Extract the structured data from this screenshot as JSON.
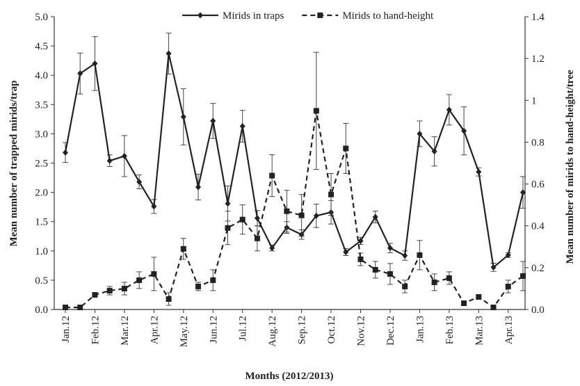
{
  "chart_data": {
    "type": "line",
    "categories": [
      "Jan.12",
      null,
      "Feb.12",
      null,
      "Mar.12",
      null,
      "Apr.12",
      null,
      "May.12",
      null,
      "Jun.12",
      null,
      "Jul.12",
      null,
      "Aug.12",
      null,
      "Sep.12",
      null,
      "Oct.12",
      null,
      "Nov.12",
      null,
      "Dec.12",
      null,
      "Jan.13",
      null,
      "Feb.13",
      null,
      "Mar.13",
      null,
      "Apr.13",
      null
    ],
    "xlabel": "Months (2012/2013)",
    "ylabel": "Mean number of trapped mirids/trap",
    "y2label": "Mean number of mirids to hand-height/tree",
    "ylim": [
      0,
      5
    ],
    "yticks": [
      {
        "value": 0,
        "label": "0.0"
      },
      {
        "value": 0.5,
        "label": "0.5"
      },
      {
        "value": 1,
        "label": "1.0"
      },
      {
        "value": 1.5,
        "label": "1.5"
      },
      {
        "value": 2,
        "label": "2.0"
      },
      {
        "value": 2.5,
        "label": "2.5"
      },
      {
        "value": 3,
        "label": "3.0"
      },
      {
        "value": 3.5,
        "label": "3.5"
      },
      {
        "value": 4,
        "label": "4.0"
      },
      {
        "value": 4.5,
        "label": "4.5"
      },
      {
        "value": 5,
        "label": "5.0"
      }
    ],
    "y2lim": [
      0,
      1.4
    ],
    "y2ticks": [
      {
        "value": 0,
        "label": "0.0"
      },
      0.2,
      0.4,
      0.6,
      0.8,
      1,
      1.2,
      1.4
    ],
    "legend": "top",
    "series": [
      {
        "name": "Mirids in traps",
        "color": "#222222",
        "dash": false,
        "marker": "diamond",
        "values": [
          2.68,
          4.03,
          4.2,
          2.54,
          2.62,
          2.18,
          1.76,
          4.37,
          3.29,
          2.09,
          3.22,
          1.81,
          3.13,
          1.56,
          1.05,
          1.4,
          1.28,
          1.6,
          1.66,
          0.98,
          1.17,
          1.58,
          1.05,
          0.92,
          3.0,
          2.7,
          3.41,
          3.05,
          2.35,
          0.72,
          0.93,
          2.0
        ],
        "errors": [
          0.17,
          0.35,
          0.46,
          0.1,
          0.35,
          0.12,
          0.12,
          0.35,
          0.48,
          0.22,
          0.3,
          0.3,
          0.27,
          0.13,
          0.05,
          0.1,
          0.08,
          0.2,
          0.2,
          0.06,
          0.06,
          0.1,
          0.08,
          0.08,
          0.22,
          0.25,
          0.26,
          0.41,
          0.07,
          0.07,
          0.04,
          0.27
        ]
      },
      {
        "name": "Mirids to hand-height",
        "color": "#222222",
        "dash": true,
        "marker": "square",
        "axis": "y2",
        "values": [
          0.01,
          0.01,
          0.07,
          0.09,
          0.1,
          0.14,
          0.17,
          0.05,
          0.29,
          0.11,
          0.14,
          0.39,
          0.43,
          0.34,
          0.64,
          0.47,
          0.45,
          0.95,
          0.55,
          0.77,
          0.24,
          0.19,
          0.17,
          0.11,
          0.26,
          0.13,
          0.15,
          0.03,
          0.06,
          0.01,
          0.11,
          0.16
        ],
        "errors": [
          0.01,
          0.01,
          0.01,
          0.02,
          0.03,
          0.04,
          0.08,
          0.03,
          0.05,
          0.02,
          0.05,
          0.08,
          0.07,
          0.06,
          0.1,
          0.1,
          0.1,
          0.28,
          0.1,
          0.12,
          0.03,
          0.04,
          0.05,
          0.03,
          0.07,
          0.04,
          0.03,
          0.01,
          0.01,
          0.01,
          0.03,
          0.07
        ]
      }
    ]
  }
}
